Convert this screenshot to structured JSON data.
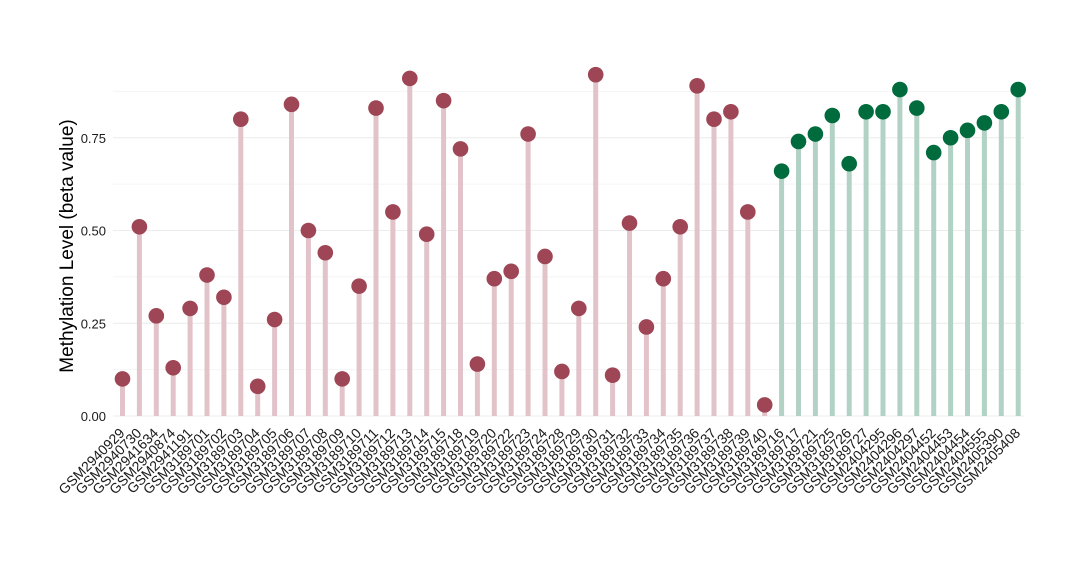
{
  "chart_data": {
    "type": "lollipop",
    "title": "",
    "xlabel": "",
    "ylabel": "Methylation Level (beta value)",
    "ylim": [
      0,
      0.93
    ],
    "yticks": [
      0.0,
      0.25,
      0.5,
      0.75
    ],
    "ytick_labels": [
      "0.00",
      "0.25",
      "0.50",
      "0.75"
    ],
    "grid": true,
    "legend": "none",
    "colors": {
      "group1_point": "#9e4655",
      "group1_stem": "#e2c3ca",
      "group2_point": "#006b3c",
      "group2_stem": "#b1d2c5",
      "grid": "#ececec"
    },
    "categories": [
      "GSM2940929",
      "GSM2940730",
      "GSM2941634",
      "GSM2940874",
      "GSM2941191",
      "GSM3189701",
      "GSM3189702",
      "GSM3189703",
      "GSM3189704",
      "GSM3189705",
      "GSM3189706",
      "GSM3189707",
      "GSM3189708",
      "GSM3189709",
      "GSM3189710",
      "GSM3189711",
      "GSM3189712",
      "GSM3189713",
      "GSM3189714",
      "GSM3189715",
      "GSM3189718",
      "GSM3189719",
      "GSM3189720",
      "GSM3189722",
      "GSM3189723",
      "GSM3189724",
      "GSM3189728",
      "GSM3189729",
      "GSM3189730",
      "GSM3189731",
      "GSM3189732",
      "GSM3189733",
      "GSM3189734",
      "GSM3189735",
      "GSM3189736",
      "GSM3189737",
      "GSM3189738",
      "GSM3189739",
      "GSM3189740",
      "GSM3189716",
      "GSM3189717",
      "GSM3189721",
      "GSM3189725",
      "GSM3189726",
      "GSM3189727",
      "GSM2404295",
      "GSM2404296",
      "GSM2404297",
      "GSM2404452",
      "GSM2404453",
      "GSM2404454",
      "GSM2404555",
      "GSM2405390",
      "GSM2405408"
    ],
    "values": [
      0.1,
      0.51,
      0.27,
      0.13,
      0.29,
      0.38,
      0.32,
      0.8,
      0.08,
      0.26,
      0.84,
      0.5,
      0.44,
      0.1,
      0.35,
      0.83,
      0.55,
      0.91,
      0.49,
      0.85,
      0.72,
      0.14,
      0.37,
      0.39,
      0.76,
      0.43,
      0.12,
      0.29,
      0.92,
      0.11,
      0.52,
      0.24,
      0.37,
      0.51,
      0.89,
      0.8,
      0.82,
      0.55,
      0.03,
      0.66,
      0.74,
      0.76,
      0.81,
      0.68,
      0.82,
      0.82,
      0.88,
      0.83,
      0.71,
      0.75,
      0.77,
      0.79,
      0.82,
      0.88
    ],
    "groups": [
      1,
      1,
      1,
      1,
      1,
      1,
      1,
      1,
      1,
      1,
      1,
      1,
      1,
      1,
      1,
      1,
      1,
      1,
      1,
      1,
      1,
      1,
      1,
      1,
      1,
      1,
      1,
      1,
      1,
      1,
      1,
      1,
      1,
      1,
      1,
      1,
      1,
      1,
      1,
      2,
      2,
      2,
      2,
      2,
      2,
      2,
      2,
      2,
      2,
      2,
      2,
      2,
      2,
      2
    ]
  }
}
